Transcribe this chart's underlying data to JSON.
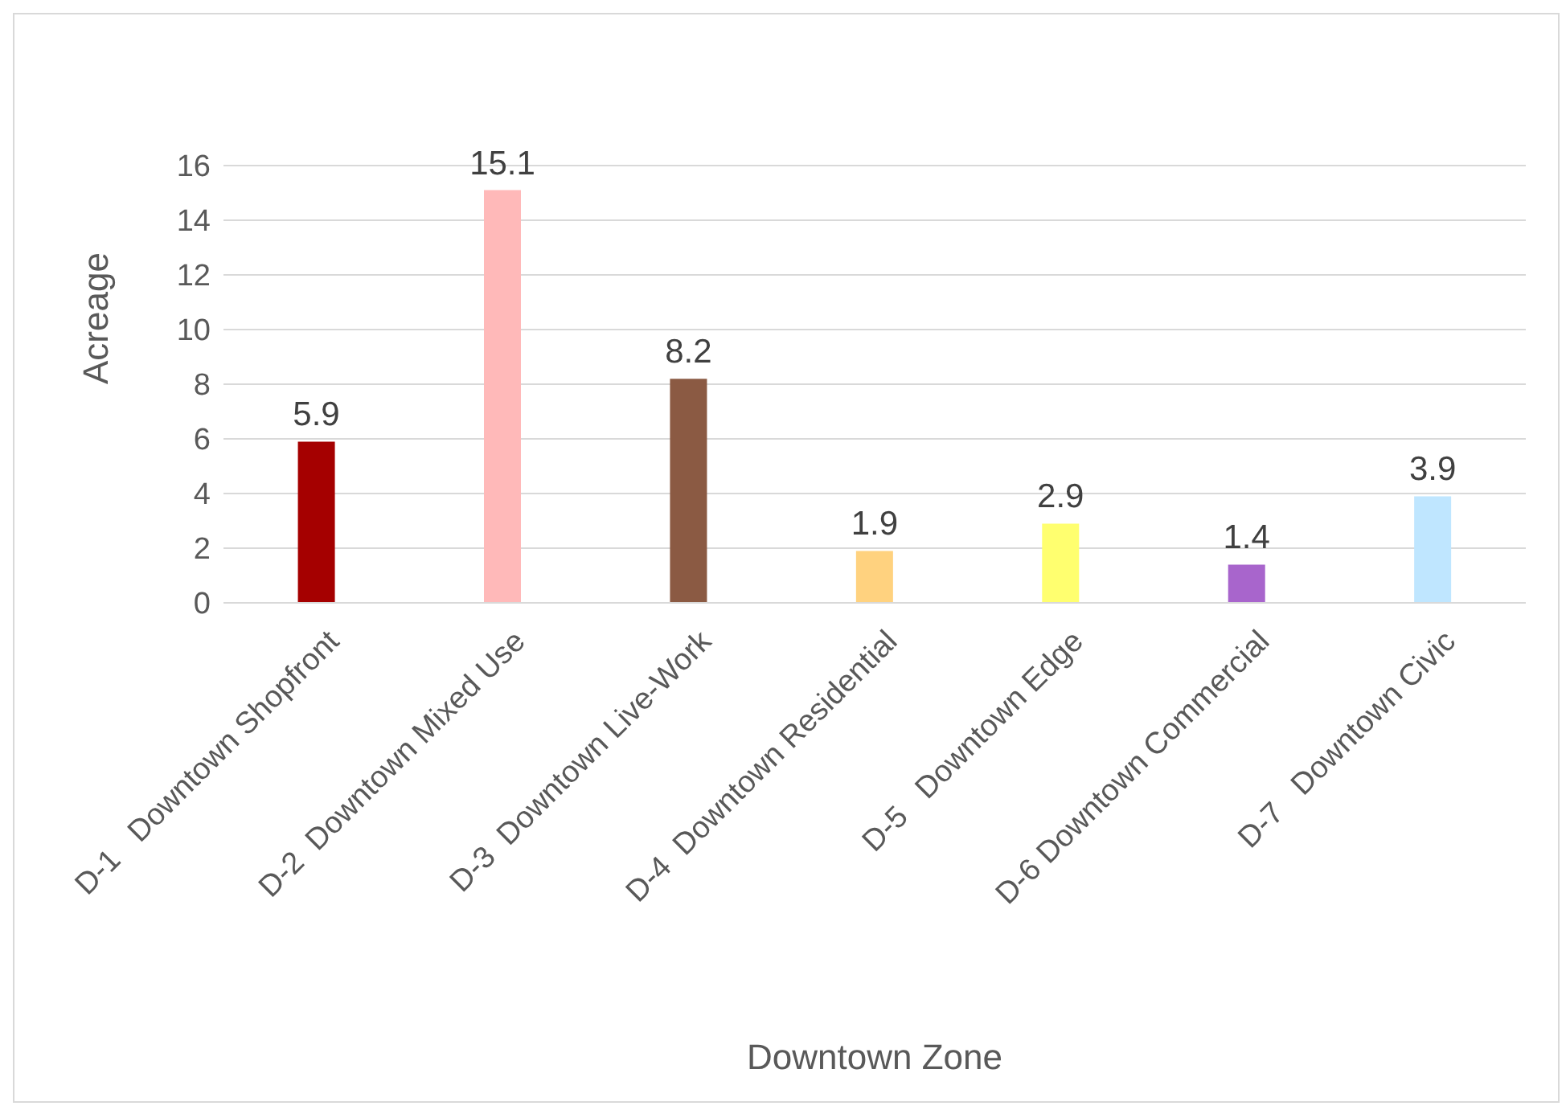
{
  "chart_data": {
    "type": "bar",
    "xlabel": "Downtown Zone",
    "ylabel": "Acreage",
    "categories": [
      "D-1   Downtown Shopfront",
      "D-2  Downtown Mixed Use",
      "D-3  Downtown Live-Work",
      "D-4  Downtown Residential",
      "D-5   Downtown Edge",
      "D-6 Downtown Commercial",
      "D-7   Downtown Civic"
    ],
    "values": [
      5.9,
      15.1,
      8.2,
      1.9,
      2.9,
      1.4,
      3.9
    ],
    "colors": [
      "#a50000",
      "#ffb9b9",
      "#8b5a43",
      "#ffd27f",
      "#ffff6f",
      "#a865cc",
      "#bfe6ff"
    ],
    "ylim": [
      0,
      16
    ],
    "yticks": [
      0,
      2,
      4,
      6,
      8,
      10,
      12,
      14,
      16
    ],
    "grid": "y",
    "data_labels": true,
    "legend": false
  }
}
